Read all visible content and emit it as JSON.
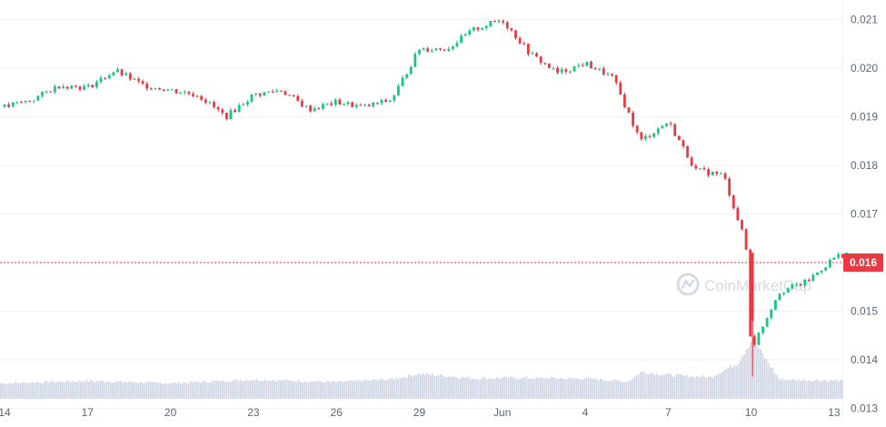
{
  "chart_data": {
    "type": "candlestick",
    "title": "",
    "xlabel": "",
    "ylabel": "",
    "x_ticks": [
      "14",
      "17",
      "20",
      "23",
      "26",
      "29",
      "Jun",
      "4",
      "7",
      "10",
      "13"
    ],
    "y_ticks": [
      "0.021",
      "0.020",
      "0.019",
      "0.018",
      "0.017",
      "0.016",
      "0.015",
      "0.014",
      "0.013"
    ],
    "ylim": [
      0.0125,
      0.0213
    ],
    "current_price": 0.016,
    "current_price_label": "0.016",
    "watermark": "CoinMarketCap",
    "grid": "horizontal",
    "colors": {
      "up": "#16c784",
      "down": "#ea3943",
      "volume": "#cfd6e4",
      "price_line": "#ea3943",
      "price_label_bg": "#ea3943",
      "grid": "#f0f2f5",
      "axis_text": "#58667e",
      "watermark": "#d5dbe5"
    },
    "series": [
      {
        "type": "price",
        "keypoints": [
          [
            "May 14",
            0.0192
          ],
          [
            "May 15",
            0.01935
          ],
          [
            "May 16",
            0.01965
          ],
          [
            "May 17",
            0.0196
          ],
          [
            "May 18",
            0.01995
          ],
          [
            "May 19",
            0.01965
          ],
          [
            "May 20",
            0.01955
          ],
          [
            "May 21",
            0.01945
          ],
          [
            "May 22",
            0.019
          ],
          [
            "May 23",
            0.01945
          ],
          [
            "May 24",
            0.01955
          ],
          [
            "May 25",
            0.01915
          ],
          [
            "May 26",
            0.0193
          ],
          [
            "May 27",
            0.0192
          ],
          [
            "May 28",
            0.01935
          ],
          [
            "May 29",
            0.0204
          ],
          [
            "May 30",
            0.0204
          ],
          [
            "May 31",
            0.0208
          ],
          [
            "Jun 1",
            0.021
          ],
          [
            "Jun 2",
            0.0203
          ],
          [
            "Jun 3",
            0.0199
          ],
          [
            "Jun 4",
            0.0201
          ],
          [
            "Jun 5",
            0.0198
          ],
          [
            "Jun 6",
            0.0185
          ],
          [
            "Jun 7",
            0.0189
          ],
          [
            "Jun 8",
            0.0179
          ],
          [
            "Jun 9",
            0.0178
          ],
          [
            "Jun 9.8",
            0.0164
          ],
          [
            "Jun 10",
            0.0142
          ],
          [
            "Jun 11",
            0.0154
          ],
          [
            "Jun 12",
            0.0156
          ],
          [
            "Jun 13",
            0.0161
          ],
          [
            "Jun 13.5",
            0.0162
          ]
        ]
      },
      {
        "type": "volume",
        "keypoints": [
          [
            "May 14",
            0.26
          ],
          [
            "May 17",
            0.3
          ],
          [
            "May 20",
            0.26
          ],
          [
            "May 23",
            0.32
          ],
          [
            "May 26",
            0.28
          ],
          [
            "May 28",
            0.33
          ],
          [
            "May 29",
            0.42
          ],
          [
            "May 31",
            0.34
          ],
          [
            "Jun 1",
            0.35
          ],
          [
            "Jun 4",
            0.34
          ],
          [
            "Jun 5.5",
            0.29
          ],
          [
            "Jun 6",
            0.45
          ],
          [
            "Jun 7",
            0.4
          ],
          [
            "Jun 8.5",
            0.36
          ],
          [
            "Jun 9.5",
            0.6
          ],
          [
            "Jun 10",
            1.0
          ],
          [
            "Jun 11",
            0.32
          ],
          [
            "Jun 13.5",
            0.3
          ]
        ]
      }
    ]
  }
}
